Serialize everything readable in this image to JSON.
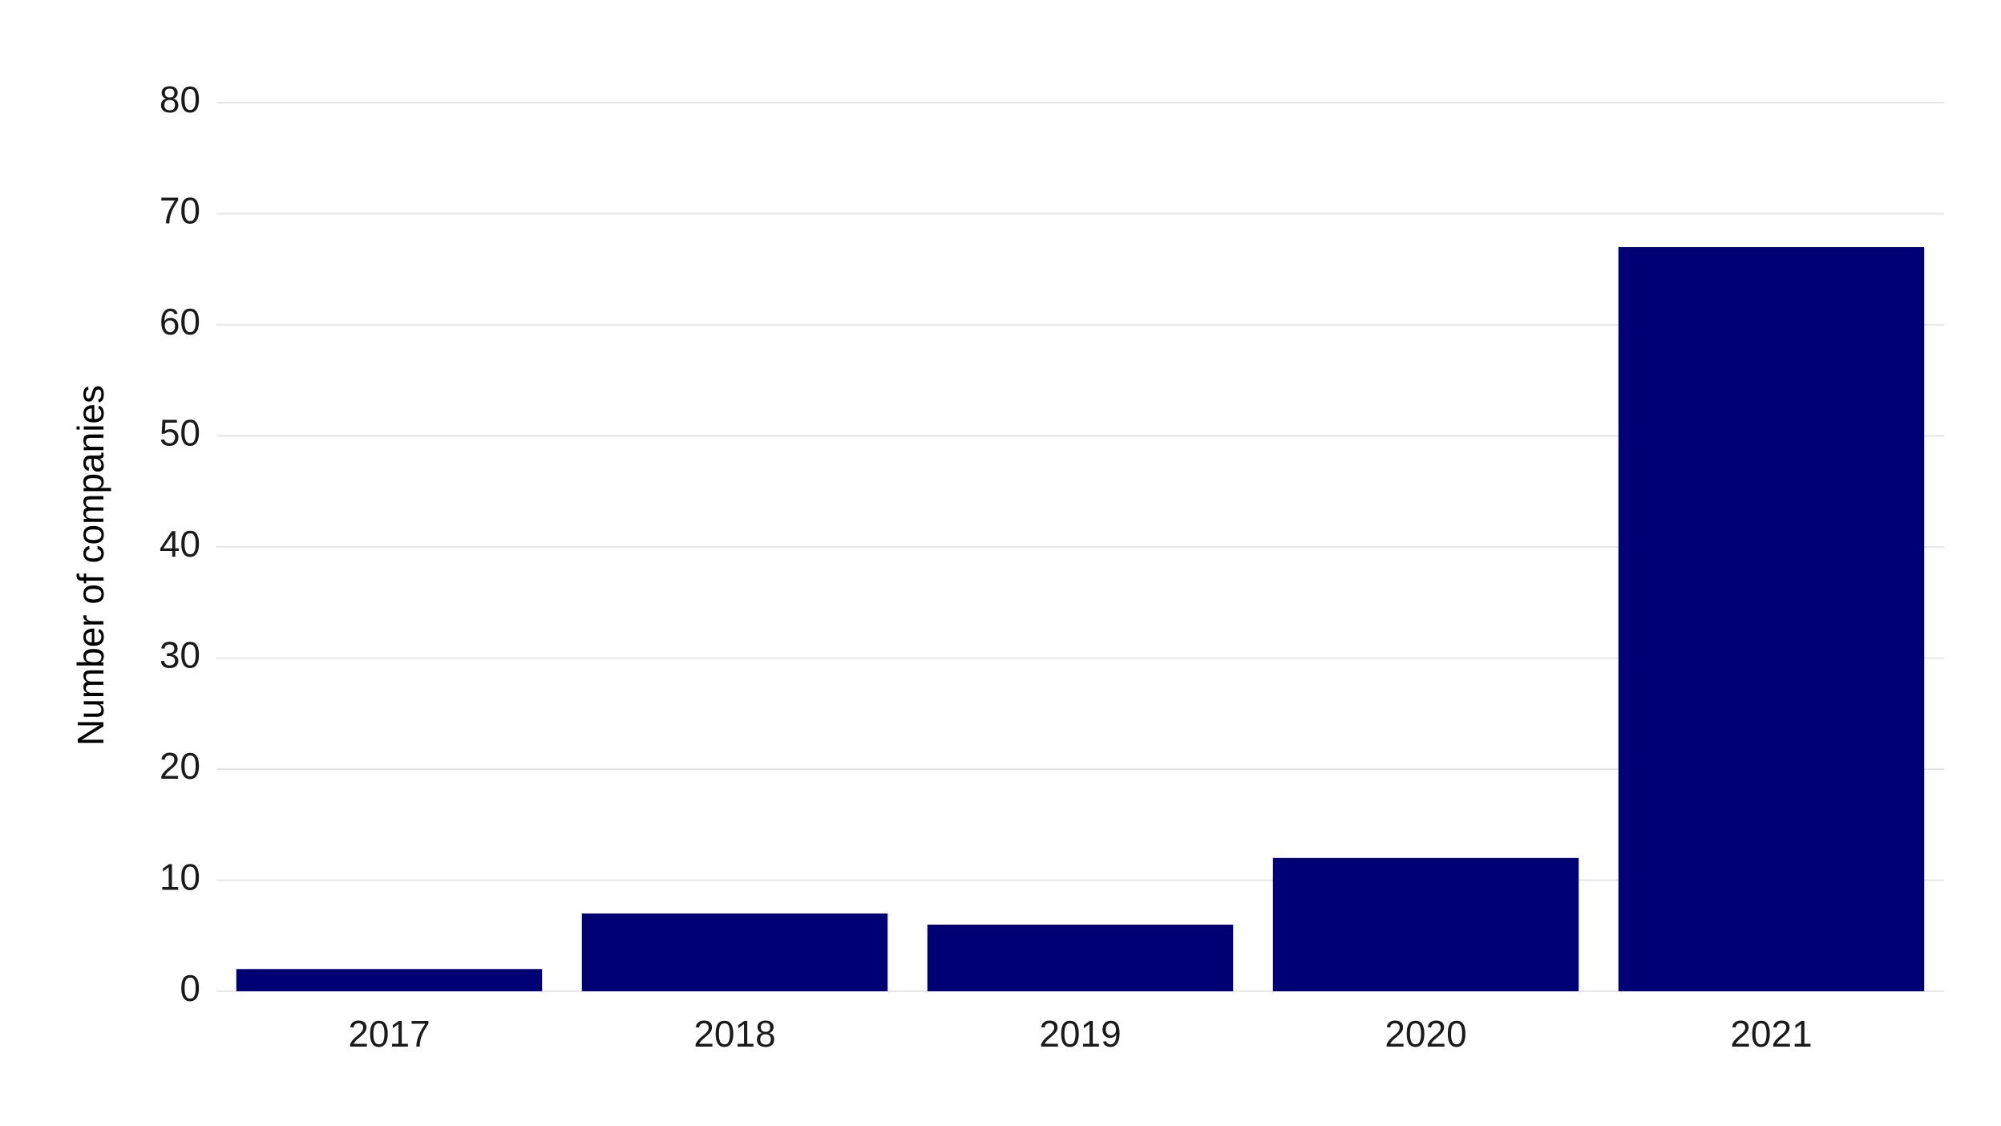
{
  "chart_data": {
    "type": "bar",
    "categories": [
      "2017",
      "2018",
      "2019",
      "2020",
      "2021"
    ],
    "series": [
      {
        "values": [
          2,
          7,
          6,
          12,
          67
        ]
      }
    ],
    "title": "",
    "xlabel": "",
    "ylabel": "Number of companies",
    "ylim": [
      0,
      80
    ],
    "yticks": [
      "0",
      "10",
      "20",
      "30",
      "40",
      "50",
      "60",
      "70",
      "80"
    ],
    "grid": true,
    "legend": "none",
    "colors": {
      "bar": "#000074",
      "grid": "#e6e6e6",
      "text": "#1a1a1a",
      "background": "#ffffff"
    }
  }
}
